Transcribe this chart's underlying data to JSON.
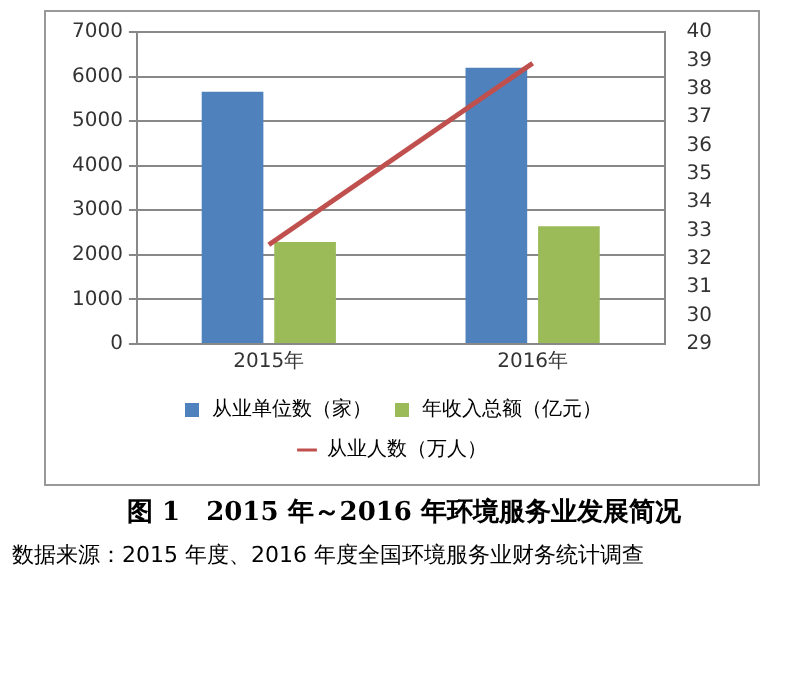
{
  "chart_data": {
    "type": "bar",
    "title": "图 1　2015 年～2016 年环境服务业发展简况",
    "annotations": [
      "数据来源：2015 年度、2016 年度全国环境服务业财务统计调查"
    ],
    "categories": [
      "2015年",
      "2016年"
    ],
    "series": [
      {
        "name": "从业单位数（家）",
        "color": "#4f81bd",
        "values": [
          5660,
          6200
        ]
      },
      {
        "name": "年收入总额（亿元）",
        "color": "#9bbb59",
        "values": [
          2290,
          2640
        ]
      },
      {
        "name": "从业人数（万人）",
        "color": "#c0504d",
        "type": "line",
        "axis": "y2",
        "values": [
          32.5,
          38.9
        ]
      }
    ],
    "ylim": [
      0,
      7000
    ],
    "yticks": [
      0,
      1000,
      2000,
      3000,
      4000,
      5000,
      6000,
      7000
    ],
    "y2lim": [
      29,
      40
    ],
    "y2ticks": [
      29,
      30,
      31,
      32,
      33,
      34,
      35,
      36,
      37,
      38,
      39,
      40
    ],
    "grid": "y",
    "legend": "bottom",
    "marker": "none",
    "line_style": "solid"
  }
}
